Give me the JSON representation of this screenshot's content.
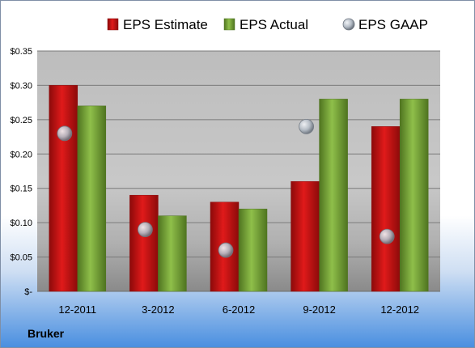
{
  "company": "Bruker",
  "colors": {
    "estimate": "#e01a1a",
    "estimate_dark": "#8c0a0a",
    "actual": "#8fbf4a",
    "actual_dark": "#4f7420",
    "gaap": "#b4bcc6",
    "gaap_dark": "#6e7680"
  },
  "legend": [
    {
      "key": "estimate",
      "label": "EPS Estimate",
      "icon": "red-square-icon"
    },
    {
      "key": "actual",
      "label": "EPS Actual",
      "icon": "green-square-icon"
    },
    {
      "key": "gaap",
      "label": "EPS GAAP",
      "icon": "gray-circle-icon"
    }
  ],
  "chart_data": {
    "type": "bar",
    "categories": [
      "12-2011",
      "3-2012",
      "6-2012",
      "9-2012",
      "12-2012"
    ],
    "series": [
      {
        "name": "EPS Estimate",
        "kind": "bar",
        "values": [
          0.3,
          0.14,
          0.13,
          0.16,
          0.24
        ]
      },
      {
        "name": "EPS Actual",
        "kind": "bar",
        "values": [
          0.27,
          0.11,
          0.12,
          0.28,
          0.28
        ]
      },
      {
        "name": "EPS GAAP",
        "kind": "point",
        "values": [
          0.23,
          0.09,
          0.06,
          0.24,
          0.08
        ]
      }
    ],
    "ylim": [
      0,
      0.35
    ],
    "yticks": [
      0,
      0.05,
      0.1,
      0.15,
      0.2,
      0.25,
      0.3,
      0.35
    ],
    "ytick_labels": [
      "$-",
      "$0.05",
      "$0.10",
      "$0.15",
      "$0.20",
      "$0.25",
      "$0.30",
      "$0.35"
    ],
    "grid": true,
    "legend_position": "top"
  }
}
